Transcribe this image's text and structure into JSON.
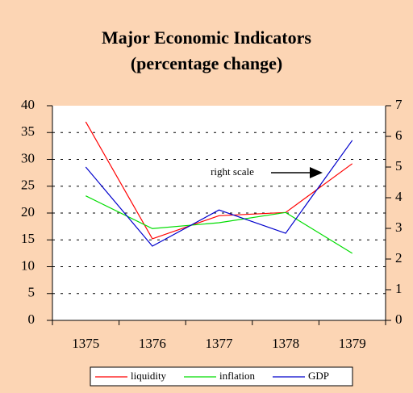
{
  "chart_data": {
    "type": "line",
    "title": "Major Economic Indicators",
    "subtitle": "(percentage change)",
    "categories": [
      "1375",
      "1376",
      "1377",
      "1378",
      "1379"
    ],
    "series": [
      {
        "name": "liquidity",
        "color": "#ff0000",
        "values": [
          37,
          15.2,
          19.5,
          20.1,
          29.2
        ]
      },
      {
        "name": "inflation",
        "color": "#00dd00",
        "values": [
          23.2,
          17.1,
          18.2,
          20.1,
          12.5
        ]
      },
      {
        "name": "GDP",
        "color": "#0000cc",
        "axis": "y2",
        "values": [
          5.0,
          2.42,
          3.6,
          2.84,
          5.87
        ]
      }
    ],
    "ylim": [
      0,
      40
    ],
    "yticks": [
      0,
      5,
      10,
      15,
      20,
      25,
      30,
      35,
      40
    ],
    "y2lim": [
      0,
      7
    ],
    "y2ticks": [
      0,
      1,
      2,
      3,
      4,
      5,
      6,
      7
    ],
    "grid": true,
    "legend": "bottom",
    "annotation": "right scale"
  }
}
